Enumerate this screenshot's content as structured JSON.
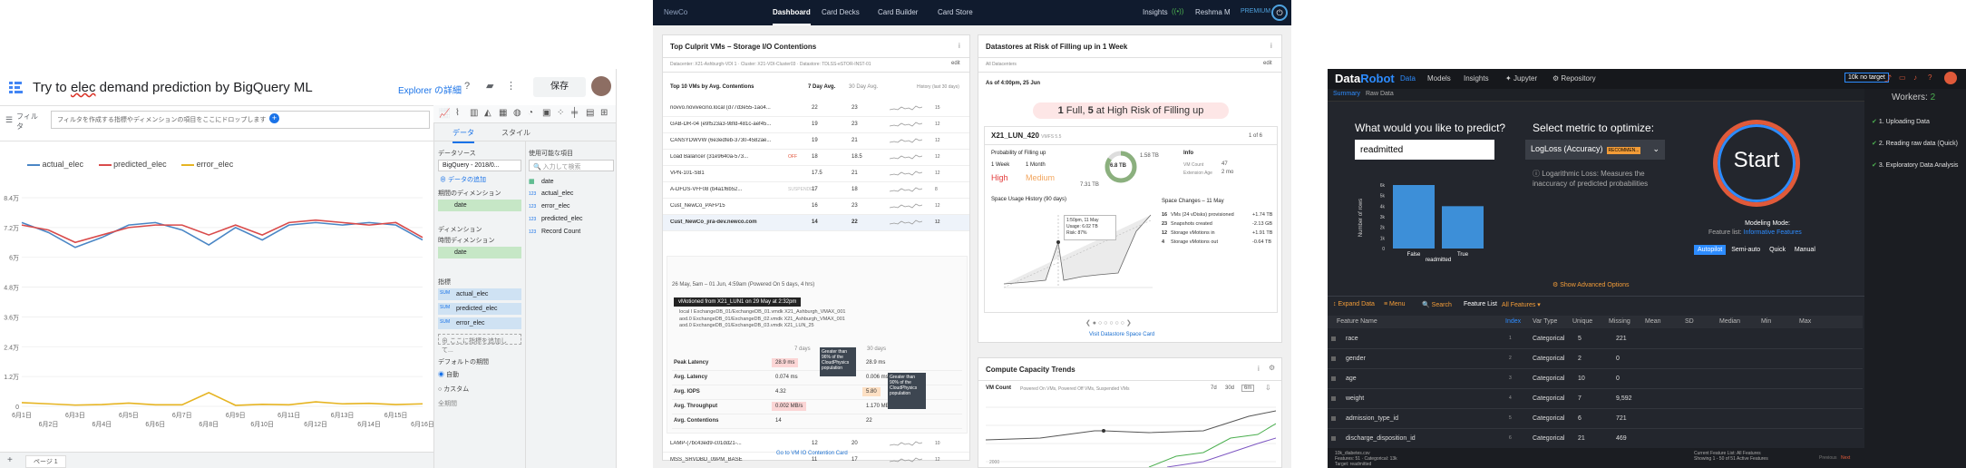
{
  "panel_bigquery": {
    "title_pre": "Try to ",
    "title_underlined": "elec",
    "title_post": " demand prediction by BigQuery ML",
    "explorer_link": "Explorer の詳細",
    "save_label": "保存",
    "filter_label": "フィルタ",
    "filter_placeholder": "フィルタを作成する指標やディメンションの項目をここにドロップします",
    "legend": [
      "actual_elec",
      "predicted_elec",
      "error_elec"
    ],
    "colors": {
      "actual": "#4a86c5",
      "predicted": "#d94b4b",
      "error": "#e6b422"
    },
    "y_ticks": [
      "8.4万",
      "7.2万",
      "6万",
      "4.8万",
      "3.6万",
      "2.4万",
      "1.2万",
      "0"
    ],
    "x_ticks_top": [
      "6月1日",
      "6月3日",
      "6月5日",
      "6月7日",
      "6月9日",
      "6月11日",
      "6月13日",
      "6月15日"
    ],
    "x_ticks_bottom": [
      "6月2日",
      "6月4日",
      "6月6日",
      "6月8日",
      "6月10日",
      "6月12日",
      "6月14日",
      "6月16日"
    ],
    "tabs": [
      "データ",
      "スタイル"
    ],
    "datasource_label": "データソース",
    "datasource_value": "BigQuery - 2018/0...",
    "add_data": "データの追加",
    "period_dim_label": "期間のディメンション",
    "period_dim_value": "date",
    "dimension_label": "ディメンション",
    "time_dim_label": "時間ディメンション",
    "time_dim_value": "date",
    "metrics_label": "指標",
    "metrics": [
      "actual_elec",
      "predicted_elec",
      "error_elec"
    ],
    "metric_prefix": "SUM",
    "add_metric": "ここに指標を追加して...",
    "default_period_label": "デフォルトの期間",
    "radio_auto": "自動",
    "radio_custom": "カスタム",
    "all_period": "全期間",
    "available_label": "使用可能な項目",
    "search_placeholder": "入力して検索",
    "fields": [
      {
        "type": "",
        "name": "date"
      },
      {
        "type": "123",
        "name": "actual_elec"
      },
      {
        "type": "123",
        "name": "error_elec"
      },
      {
        "type": "123",
        "name": "predicted_elec"
      },
      {
        "type": "123",
        "name": "Record Count"
      }
    ],
    "page_tab": "ページ 1"
  },
  "panel_vm": {
    "nav": [
      "NewCo",
      "Dashboard",
      "Card Decks",
      "Card Builder",
      "Card Store",
      "Insights",
      "Reshma M",
      "PREMIUM"
    ],
    "card1": {
      "title": "Top Culprit VMs – Storage I/O Contentions",
      "sub": "Datacenter: X21-Ashburgh-VDI 1 · Cluster: X21-VDI-Cluster03 · Datastore: TDLSS-eSTOR-INST-01",
      "edit": "edit",
      "table_title": "Top 10 VMs by Avg. Contentions",
      "col_7d": "7 Day Avg.",
      "col_30d": "30 Day Avg.",
      "col_hist": "History (last 30 days)",
      "rows": [
        {
          "name": "novvo.novivecino.local (d77d3e55-1ao4...",
          "a": "22",
          "b": "23",
          "h": "15"
        },
        {
          "name": "GAB-DR-04 (e9f523a3-98fd-481c-aef45...",
          "a": "19",
          "b": "23",
          "h": "12"
        },
        {
          "name": "CANSYDWVW (6e3edfeb-3730-4582ae...",
          "a": "19",
          "b": "21",
          "h": "12"
        },
        {
          "name": "Load Balancer (31e9640a-573...",
          "tag": "OFF",
          "a": "18",
          "b": "18.5",
          "h": "12"
        },
        {
          "name": "VPN-101-SB1",
          "a": "17.5",
          "b": "21",
          "h": "12"
        },
        {
          "name": "A-DFDS-VFF08 (b4a1f6b52...",
          "tag": "SUSPENDED",
          "a": "17",
          "b": "18",
          "h": "8"
        },
        {
          "name": "Cust_NewCo_PAFP15",
          "a": "16",
          "b": "23",
          "h": "12"
        },
        {
          "name": "Cust_NewCo_jira-dev.newco.com",
          "a": "14",
          "b": "22",
          "h": "12"
        }
      ],
      "expand_note": "26 May, 5am – 01 Jun, 4:59am (Powered On 5 days, 4 hrs)",
      "tooltip": "vMotioned from X21_LUN1 on 29 May at 2:32pm",
      "vmdk": [
        "local I ExchangeDB_01/ExchangeDB_01.vmdk   X21_Ashburgh_VMAX_001",
        "aod.0 ExchangeDB_01/ExchangeDB_02.vmdk   X21_Ashburgh_VMAX_001",
        "aod.0 ExchangeDB_01/ExchangeDB_03.vmdk   X21_LUN_25"
      ],
      "metrics_head": [
        "7 days",
        "30 days"
      ],
      "metrics": [
        {
          "label": "Peak Latency",
          "a": "28.9 ms",
          "b": "28.9 ms"
        },
        {
          "label": "Avg. Latency",
          "a": "0.074 ms",
          "b": "0.006 ms"
        },
        {
          "label": "Avg. IOPS",
          "a": "4.32",
          "b": "5.80"
        },
        {
          "label": "Avg. Throughput",
          "a": "0.002 MB/s",
          "b": "1.170 MB/s"
        },
        {
          "label": "Avg. Contentions",
          "a": "14",
          "b": "22"
        }
      ],
      "callout1": "Greater than 96% of the CloudPhysics population",
      "callout2": "Greater than 90% of the CloudPhysics population",
      "rows2": [
        {
          "name": "LAMP-(7bc43ed9-c01dd21-...",
          "a": "12",
          "b": "20",
          "h": "10"
        },
        {
          "name": "MSS_SRVDBD_09PM_BASE",
          "a": "11",
          "b": "17",
          "h": "12"
        }
      ],
      "link": "Go to VM IO Contention Card"
    },
    "card2": {
      "title": "Datastores at Risk of Filling up in 1 Week",
      "sub": "All Datacenters",
      "asof": "As of 4:00pm, 25 Jun",
      "banner_pre": "1",
      "banner_mid": " Full, ",
      "banner_num": "5",
      "banner_post": " at High Risk of Filling up",
      "ds_name": "X21_LUN_420",
      "ds_tag": "VMFS 5.5",
      "ds_count": "1 of 6",
      "prob_label": "Probability of Filling up",
      "week": "1 Week",
      "month": "1 Month",
      "high": "High",
      "medium": "Medium",
      "gauge_val": "6.8 TB",
      "cap1": "1.58 TB",
      "cap2": "7.31 TB",
      "info_title": "Info",
      "info1": "VM Count",
      "info1v": "47",
      "info2": "Extension Age",
      "info2v": "2 mo",
      "space_title": "Space Usage History (90 days)",
      "tt_date": "1:50pm, 11 May",
      "tt_usage": "Usage: 6.02 TB",
      "tt_risk": "Risk: 87%",
      "changes_title": "Space Changes – 11 May",
      "changes": [
        {
          "n": "16",
          "t": "VMs (24 vDisks) provisioned",
          "v": "+1.74 TB"
        },
        {
          "n": "23",
          "t": "Snapshots created",
          "v": "-2.13 GB"
        },
        {
          "n": "12",
          "t": "Storage vMotions in",
          "v": "+1.91 TB"
        },
        {
          "n": "4",
          "t": "Storage vMotions out",
          "v": "-0.64 TB"
        }
      ],
      "link": "Visit Datastore Space Card"
    },
    "card3": {
      "title": "Compute Capacity Trends",
      "vm_count": "VM Count",
      "sub": "Powered On VMs, Powered Off VMs, Suspended VMs",
      "ranges": [
        "7d",
        "30d",
        "6m"
      ],
      "ytick": "2000"
    }
  },
  "panel_datarobot": {
    "logo_a": "Data",
    "logo_b": "Robot",
    "nav": [
      "Data",
      "Models",
      "Insights",
      "Jupyter",
      "Repository"
    ],
    "target_badge": "10k no target",
    "tabs": [
      "Summary",
      "Raw Data"
    ],
    "workers_label": "Workers:",
    "workers_val": "2",
    "predict_label": "What would you like to predict?",
    "predict_value": "readmitted",
    "metric_label": "Select metric to optimize:",
    "metric_value": "LogLoss (Accuracy)",
    "metric_tag": "RECOMMEN...",
    "metric_note": "Logarithmic Loss: Measures the inaccuracy of predicted probabilities",
    "hist_y": "Number of rows",
    "hist_x": "readmitted",
    "hist_cats": [
      "False",
      "True"
    ],
    "hist_vals": [
      6000,
      4000
    ],
    "hist_yticks": [
      "6k",
      "5k",
      "4k",
      "3k",
      "2k",
      "1k",
      "0"
    ],
    "start": "Start",
    "modeling_mode": "Modeling Mode:",
    "feature_list_label": "Feature list:",
    "feature_list_value": "Informative Features",
    "modes": [
      "Autopilot",
      "Semi-auto",
      "Quick",
      "Manual"
    ],
    "advanced": "Show Advanced Options",
    "steps": [
      "1. Uploading Data",
      "2. Reading raw data (Quick)",
      "3. Exploratory Data Analysis"
    ],
    "toolbar": [
      "Expand Data",
      "Menu",
      "Search",
      "Feature List",
      "All Features"
    ],
    "columns": [
      "Feature Name",
      "Index",
      "Var Type",
      "Unique",
      "Missing",
      "Mean",
      "SD",
      "Median",
      "Min",
      "Max"
    ],
    "rows": [
      {
        "name": "race",
        "idx": "1",
        "type": "Categorical",
        "u": "5",
        "m": "221"
      },
      {
        "name": "gender",
        "idx": "2",
        "type": "Categorical",
        "u": "2",
        "m": "0"
      },
      {
        "name": "age",
        "idx": "3",
        "type": "Categorical",
        "u": "10",
        "m": "0"
      },
      {
        "name": "weight",
        "idx": "4",
        "type": "Categorical",
        "u": "7",
        "m": "9,592"
      },
      {
        "name": "admission_type_id",
        "idx": "5",
        "type": "Categorical",
        "u": "6",
        "m": "721"
      },
      {
        "name": "discharge_disposition_id",
        "idx": "6",
        "type": "Categorical",
        "u": "21",
        "m": "469"
      }
    ],
    "footer_left": "10k_diabetes.csv",
    "footer_left2": "Features: 51 · Categorical: 13k",
    "footer_left3": "Target: readmitted",
    "footer_mid1": "Current Feature List: All Features",
    "footer_mid2": "Showing 1 - 50 of 51 Active Features",
    "footer_prev": "Previous",
    "footer_next": "Next"
  },
  "chart_data": {
    "type": "line",
    "categories": [
      "6月1日",
      "6月2日",
      "6月3日",
      "6月4日",
      "6月5日",
      "6月6日",
      "6月7日",
      "6月8日",
      "6月9日",
      "6月10日",
      "6月11日",
      "6月12日",
      "6月13日",
      "6月14日",
      "6月15日",
      "6月16日"
    ],
    "series": [
      {
        "name": "actual_elec",
        "values": [
          74000,
          70000,
          64000,
          68000,
          73000,
          74000,
          71000,
          65000,
          72000,
          67000,
          73000,
          74000,
          73000,
          74000,
          73000,
          67000
        ]
      },
      {
        "name": "predicted_elec",
        "values": [
          73000,
          71000,
          66000,
          69000,
          72000,
          73000,
          73000,
          69000,
          73000,
          69000,
          74000,
          75000,
          74000,
          73000,
          74000,
          68000
        ]
      },
      {
        "name": "error_elec",
        "values": [
          1500,
          1000,
          500,
          700,
          1300,
          600,
          600,
          5500,
          400,
          800,
          600,
          1800,
          1000,
          1200,
          700,
          1000
        ]
      }
    ],
    "ylim": [
      0,
      84000
    ]
  }
}
